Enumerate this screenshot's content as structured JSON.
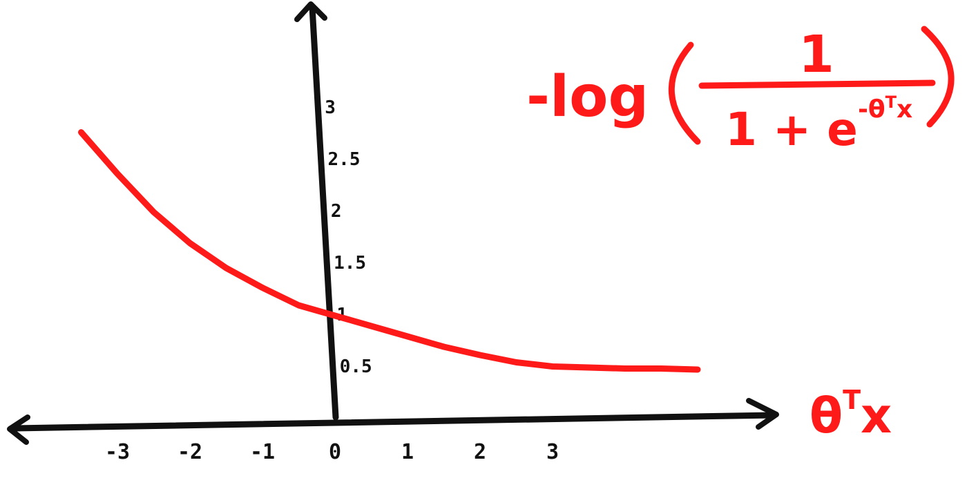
{
  "chart_data": {
    "type": "line",
    "formula": {
      "prefix": "-log",
      "numerator": "1",
      "denominator_base": "1 + e",
      "exponent": "-θ",
      "exponent_sup": "T",
      "exponent_tail": "x"
    },
    "xlabel": {
      "base": "θ",
      "sup": "T",
      "tail": "x"
    },
    "x_ticks": [
      {
        "value": -3,
        "label": "-3"
      },
      {
        "value": -2,
        "label": "-2"
      },
      {
        "value": -1,
        "label": "-1"
      },
      {
        "value": 0,
        "label": "0"
      },
      {
        "value": 1,
        "label": "1"
      },
      {
        "value": 2,
        "label": "2"
      },
      {
        "value": 3,
        "label": "3"
      }
    ],
    "y_ticks": [
      {
        "value": 0.5,
        "label": "0.5"
      },
      {
        "value": 1,
        "label": "1"
      },
      {
        "value": 1.5,
        "label": "1.5"
      },
      {
        "value": 2,
        "label": "2"
      },
      {
        "value": 2.5,
        "label": "2.5"
      },
      {
        "value": 3,
        "label": "3"
      }
    ],
    "series": [
      {
        "color": "#ff1a1a",
        "x": [
          -3.5,
          -3,
          -2.5,
          -2,
          -1.5,
          -1,
          -0.5,
          0,
          0.5,
          1,
          1.5,
          2,
          2.5,
          3,
          3.5,
          4,
          4.5,
          5
        ],
        "y": [
          2.75,
          2.35,
          1.98,
          1.68,
          1.44,
          1.25,
          1.08,
          0.98,
          0.88,
          0.78,
          0.68,
          0.6,
          0.53,
          0.49,
          0.48,
          0.47,
          0.47,
          0.46
        ]
      }
    ],
    "xlim": [
      -4.2,
      5.5
    ],
    "ylim": [
      0,
      3.8
    ]
  }
}
